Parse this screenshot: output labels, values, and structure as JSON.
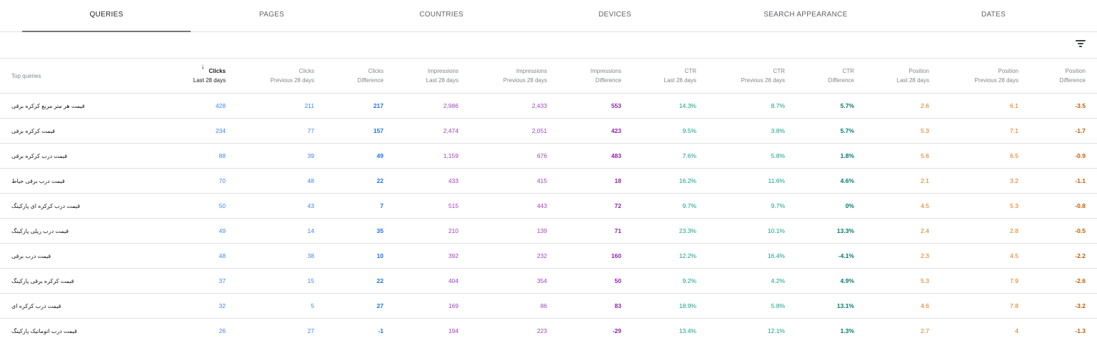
{
  "tabs": [
    {
      "label": "QUERIES",
      "active": true
    },
    {
      "label": "PAGES"
    },
    {
      "label": "COUNTRIES"
    },
    {
      "label": "DEVICES"
    },
    {
      "label": "SEARCH APPEARANCE"
    },
    {
      "label": "DATES"
    }
  ],
  "toolbar": {
    "filter_icon": "filter-icon"
  },
  "table": {
    "columns": [
      {
        "top": "Top queries",
        "sub": ""
      },
      {
        "top": "Clicks",
        "sub": "Last 28 days",
        "sorted": true
      },
      {
        "top": "Clicks",
        "sub": "Previous 28 days"
      },
      {
        "top": "Clicks",
        "sub": "Difference"
      },
      {
        "top": "Impressions",
        "sub": "Last 28 days"
      },
      {
        "top": "Impressions",
        "sub": "Previous 28 days"
      },
      {
        "top": "Impressions",
        "sub": "Difference"
      },
      {
        "top": "CTR",
        "sub": "Last 28 days"
      },
      {
        "top": "CTR",
        "sub": "Previous 28 days"
      },
      {
        "top": "CTR",
        "sub": "Difference"
      },
      {
        "top": "Position",
        "sub": "Last 28 days"
      },
      {
        "top": "Position",
        "sub": "Previous 28 days"
      },
      {
        "top": "Position",
        "sub": "Difference"
      }
    ],
    "sort_arrow": "↓",
    "rows": [
      {
        "query": "قیمت هر متر مربع کرکره برقی",
        "clicks": "428",
        "clicks_prev": "211",
        "clicks_diff": "217",
        "impr": "2,986",
        "impr_prev": "2,433",
        "impr_diff": "553",
        "ctr": "14.3%",
        "ctr_prev": "8.7%",
        "ctr_diff": "5.7%",
        "pos": "2.6",
        "pos_prev": "6.1",
        "pos_diff": "-3.5"
      },
      {
        "query": "قیمت کرکره برقی",
        "clicks": "234",
        "clicks_prev": "77",
        "clicks_diff": "157",
        "impr": "2,474",
        "impr_prev": "2,051",
        "impr_diff": "423",
        "ctr": "9.5%",
        "ctr_prev": "3.8%",
        "ctr_diff": "5.7%",
        "pos": "5.3",
        "pos_prev": "7.1",
        "pos_diff": "-1.7"
      },
      {
        "query": "قیمت درب کرکره برقی",
        "clicks": "88",
        "clicks_prev": "39",
        "clicks_diff": "49",
        "impr": "1,159",
        "impr_prev": "676",
        "impr_diff": "483",
        "ctr": "7.6%",
        "ctr_prev": "5.8%",
        "ctr_diff": "1.8%",
        "pos": "5.6",
        "pos_prev": "6.5",
        "pos_diff": "-0.9"
      },
      {
        "query": "قیمت درب برقی حیاط",
        "clicks": "70",
        "clicks_prev": "48",
        "clicks_diff": "22",
        "impr": "433",
        "impr_prev": "415",
        "impr_diff": "18",
        "ctr": "16.2%",
        "ctr_prev": "11.6%",
        "ctr_diff": "4.6%",
        "pos": "2.1",
        "pos_prev": "3.2",
        "pos_diff": "-1.1"
      },
      {
        "query": "قیمت درب کرکره ای پارکینگ",
        "clicks": "50",
        "clicks_prev": "43",
        "clicks_diff": "7",
        "impr": "515",
        "impr_prev": "443",
        "impr_diff": "72",
        "ctr": "9.7%",
        "ctr_prev": "9.7%",
        "ctr_diff": "0%",
        "pos": "4.5",
        "pos_prev": "5.3",
        "pos_diff": "-0.8"
      },
      {
        "query": "قیمت درب ریلی پارکینگ",
        "clicks": "49",
        "clicks_prev": "14",
        "clicks_diff": "35",
        "impr": "210",
        "impr_prev": "139",
        "impr_diff": "71",
        "ctr": "23.3%",
        "ctr_prev": "10.1%",
        "ctr_diff": "13.3%",
        "pos": "2.4",
        "pos_prev": "2.8",
        "pos_diff": "-0.5"
      },
      {
        "query": "قیمت درب برقی",
        "clicks": "48",
        "clicks_prev": "38",
        "clicks_diff": "10",
        "impr": "392",
        "impr_prev": "232",
        "impr_diff": "160",
        "ctr": "12.2%",
        "ctr_prev": "16.4%",
        "ctr_diff": "-4.1%",
        "pos": "2.3",
        "pos_prev": "4.5",
        "pos_diff": "-2.2"
      },
      {
        "query": "قیمت کرکره برقی پارکینگ",
        "clicks": "37",
        "clicks_prev": "15",
        "clicks_diff": "22",
        "impr": "404",
        "impr_prev": "354",
        "impr_diff": "50",
        "ctr": "9.2%",
        "ctr_prev": "4.2%",
        "ctr_diff": "4.9%",
        "pos": "5.3",
        "pos_prev": "7.9",
        "pos_diff": "-2.6"
      },
      {
        "query": "قیمت درب کرکره ای",
        "clicks": "32",
        "clicks_prev": "5",
        "clicks_diff": "27",
        "impr": "169",
        "impr_prev": "86",
        "impr_diff": "83",
        "ctr": "18.9%",
        "ctr_prev": "5.8%",
        "ctr_diff": "13.1%",
        "pos": "4.6",
        "pos_prev": "7.8",
        "pos_diff": "-3.2"
      },
      {
        "query": "قیمت درب اتوماتیک پارکینگ",
        "clicks": "26",
        "clicks_prev": "27",
        "clicks_diff": "-1",
        "impr": "194",
        "impr_prev": "223",
        "impr_diff": "-29",
        "ctr": "13.4%",
        "ctr_prev": "12.1%",
        "ctr_diff": "1.3%",
        "pos": "2.7",
        "pos_prev": "4",
        "pos_diff": "-1.3"
      }
    ]
  }
}
